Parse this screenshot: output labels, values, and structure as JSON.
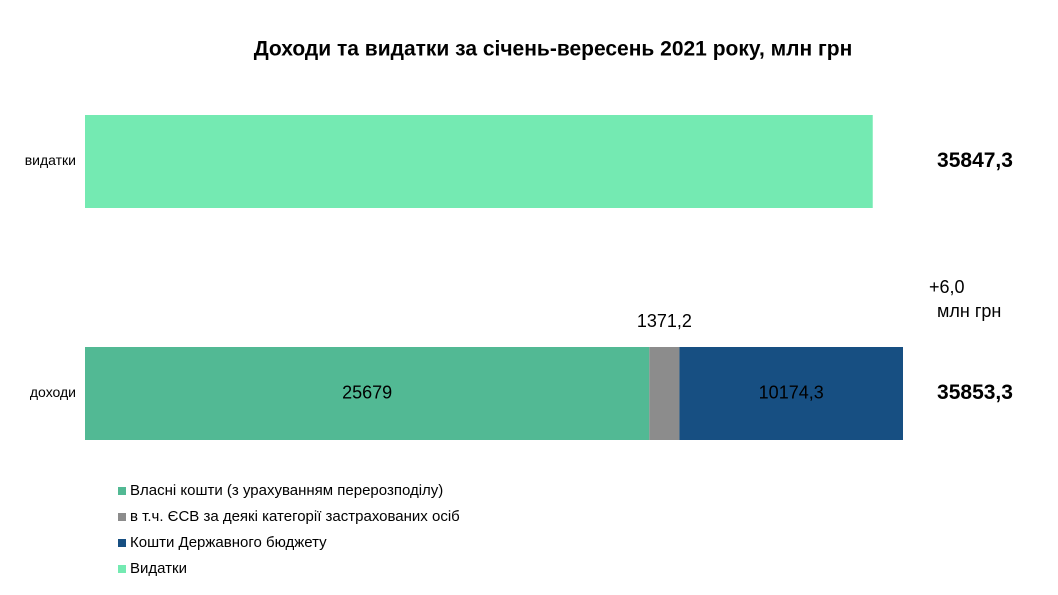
{
  "chart_data": {
    "type": "bar",
    "orientation": "horizontal",
    "stacked": true,
    "title": "Доходи та видатки за січень-вересень 2021 року, млн грн",
    "categories": [
      "видатки",
      "доходи"
    ],
    "series": [
      {
        "name": "Власні кошти (з урахуванням перерозподілу)",
        "color": "#52b994",
        "label_color": "#ffffff",
        "values": [
          null,
          25679
        ]
      },
      {
        "name": "в т.ч. ЄСВ за деякі категорії застрахованих осіб",
        "color": "#8c8c8c",
        "label_color": "#000000",
        "label_position": "above",
        "values": [
          null,
          1371.2
        ],
        "value_labels": [
          null,
          "1371,2"
        ]
      },
      {
        "name": "Кошти Державного бюджету",
        "color": "#174f82",
        "label_color": "#ffffff",
        "values": [
          null,
          10174.3
        ],
        "value_labels": [
          null,
          "10174,3"
        ]
      },
      {
        "name": "Видатки",
        "color": "#74eab2",
        "values": [
          35847.3,
          null
        ]
      }
    ],
    "totals": {
      "values": [
        35847.3,
        35853.3
      ],
      "value_labels": [
        "35847,3",
        "35853,3"
      ]
    },
    "annotation": [
      "+6,0",
      "млн грн"
    ],
    "legend": "bottom-left"
  }
}
